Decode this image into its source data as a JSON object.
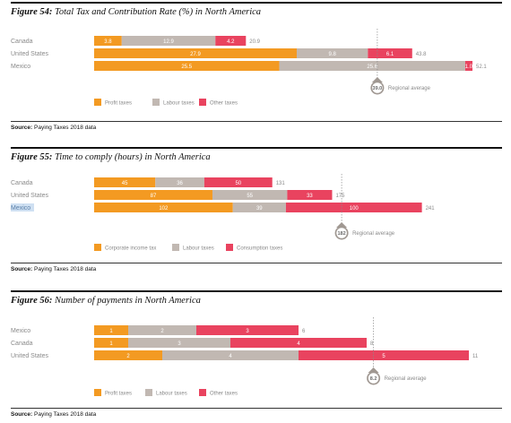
{
  "colors": {
    "series1": "#f39a22",
    "series2": "#c1b8b2",
    "series3": "#e9435f",
    "avg_marker": "#a09892"
  },
  "figures": [
    {
      "title_bold": "Figure 54:",
      "title_text": "Total Tax and Contribution Rate (%) in North America",
      "source_bold": "Source:",
      "source_text": "Paying Taxes 2018 data"
    },
    {
      "title_bold": "Figure 55:",
      "title_text": "Time to comply (hours) in North America",
      "source_bold": "Source:",
      "source_text": "Paying Taxes 2018 data"
    },
    {
      "title_bold": "Figure 56:",
      "title_text": "Number of payments in North America",
      "source_bold": "Source:",
      "source_text": "Paying Taxes 2018 data"
    }
  ],
  "chart_data": [
    {
      "type": "bar",
      "orientation": "horizontal",
      "stacked": true,
      "title": "Figure 54: Total Tax and Contribution Rate (%) in North America",
      "categories": [
        "Canada",
        "United States",
        "Mexico"
      ],
      "series": [
        {
          "name": "Profit taxes",
          "values": [
            3.8,
            27.9,
            25.5
          ]
        },
        {
          "name": "Labour taxes",
          "values": [
            12.9,
            9.8,
            25.6
          ]
        },
        {
          "name": "Other taxes",
          "values": [
            4.2,
            6.1,
            1.0
          ]
        }
      ],
      "segment_labels": [
        [
          "3.8",
          "12.9",
          "4.2"
        ],
        [
          "27.9",
          "9.8",
          "6.1"
        ],
        [
          "25.5",
          "25.6",
          "1.0"
        ]
      ],
      "totals": [
        20.9,
        43.8,
        52.1
      ],
      "reference_line": {
        "label": "Regional average",
        "value": 39.0,
        "value_text": "39.0"
      },
      "xlim": [
        0,
        52.1
      ],
      "legend_position": "bottom-left",
      "grid": false
    },
    {
      "type": "bar",
      "orientation": "horizontal",
      "stacked": true,
      "title": "Figure 55: Time to comply (hours) in North America",
      "categories": [
        "Canada",
        "United States",
        "Mexico"
      ],
      "highlight_category": "Mexico",
      "series": [
        {
          "name": "Corporate income tax",
          "values": [
            45,
            87,
            102
          ]
        },
        {
          "name": "Labour taxes",
          "values": [
            36,
            55,
            39
          ]
        },
        {
          "name": "Consumption taxes",
          "values": [
            50,
            33,
            100
          ]
        }
      ],
      "segment_labels": [
        [
          "45",
          "36",
          "50"
        ],
        [
          "87",
          "55",
          "33"
        ],
        [
          "102",
          "39",
          "100"
        ]
      ],
      "totals": [
        131,
        175,
        241
      ],
      "reference_line": {
        "label": "Regional average",
        "value": 182,
        "value_text": "182"
      },
      "xlim": [
        0,
        241
      ],
      "legend_position": "bottom-left",
      "grid": false
    },
    {
      "type": "bar",
      "orientation": "horizontal",
      "stacked": true,
      "title": "Figure 56: Number of payments in North America",
      "categories": [
        "Mexico",
        "Canada",
        "United States"
      ],
      "series": [
        {
          "name": "Profit taxes",
          "values": [
            1,
            1,
            2
          ]
        },
        {
          "name": "Labour taxes",
          "values": [
            2,
            3,
            4
          ]
        },
        {
          "name": "Other taxes",
          "values": [
            3,
            4,
            5
          ]
        }
      ],
      "segment_labels": [
        [
          "1",
          "2",
          "3"
        ],
        [
          "1",
          "3",
          "4"
        ],
        [
          "2",
          "4",
          "5"
        ]
      ],
      "totals": [
        6,
        8,
        11
      ],
      "reference_line": {
        "label": "Regional average",
        "value": 8.2,
        "value_text": "8.2"
      },
      "xlim": [
        0,
        11
      ],
      "legend_position": "bottom-left",
      "grid": false
    }
  ]
}
